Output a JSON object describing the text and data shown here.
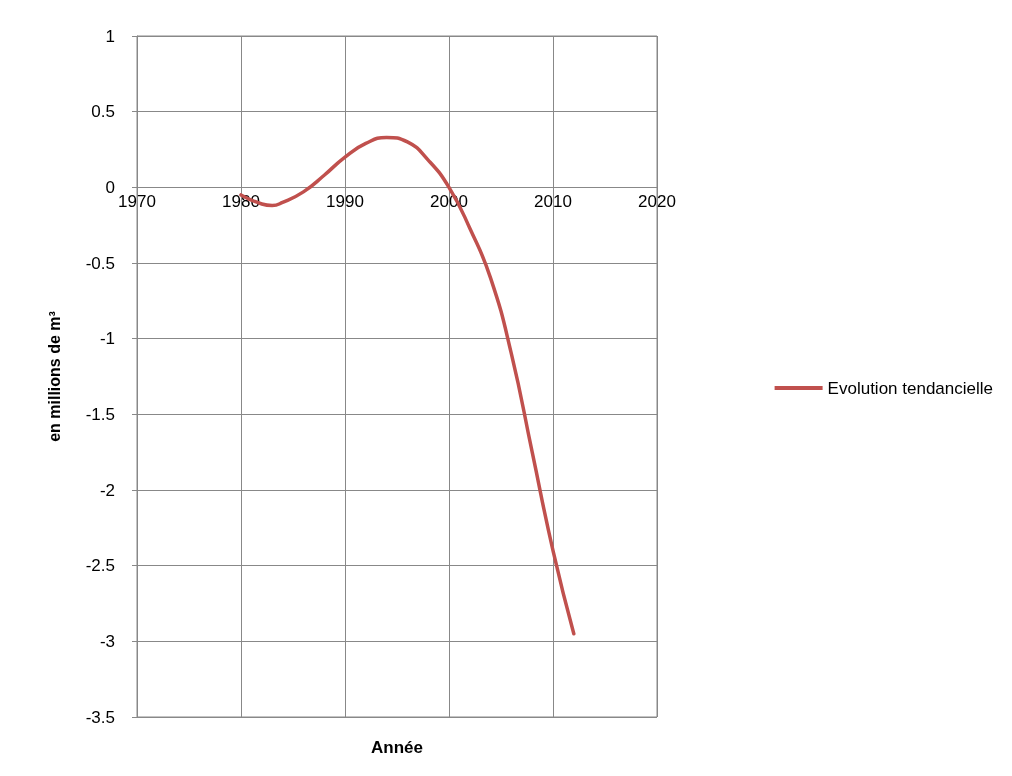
{
  "chart_data": {
    "type": "line",
    "xlabel": "Année",
    "ylabel": "en millions de m³",
    "x": [
      1980,
      1982,
      1983,
      1984,
      1986,
      1988,
      1990,
      1992,
      1994,
      1996,
      1998,
      2000,
      2002,
      2004,
      2006,
      2008,
      2010,
      2012
    ],
    "series": [
      {
        "name": "Evolution tendancielle",
        "color": "#c0504d",
        "values": [
          -0.05,
          -0.11,
          -0.12,
          -0.1,
          -0.03,
          0.08,
          0.2,
          0.29,
          0.33,
          0.3,
          0.18,
          0.0,
          -0.27,
          -0.6,
          -1.1,
          -1.75,
          -2.4,
          -2.95
        ]
      }
    ],
    "xlim": [
      1970,
      2020
    ],
    "xticks": [
      1970,
      1980,
      1990,
      2000,
      2010,
      2020
    ],
    "ylim": [
      -3.5,
      1
    ],
    "yticks": [
      -3.5,
      -3,
      -2.5,
      -2,
      -1.5,
      -1,
      -0.5,
      0,
      0.5,
      1
    ],
    "grid": true,
    "legend": "right",
    "marker": "none",
    "line_style": "solid"
  }
}
